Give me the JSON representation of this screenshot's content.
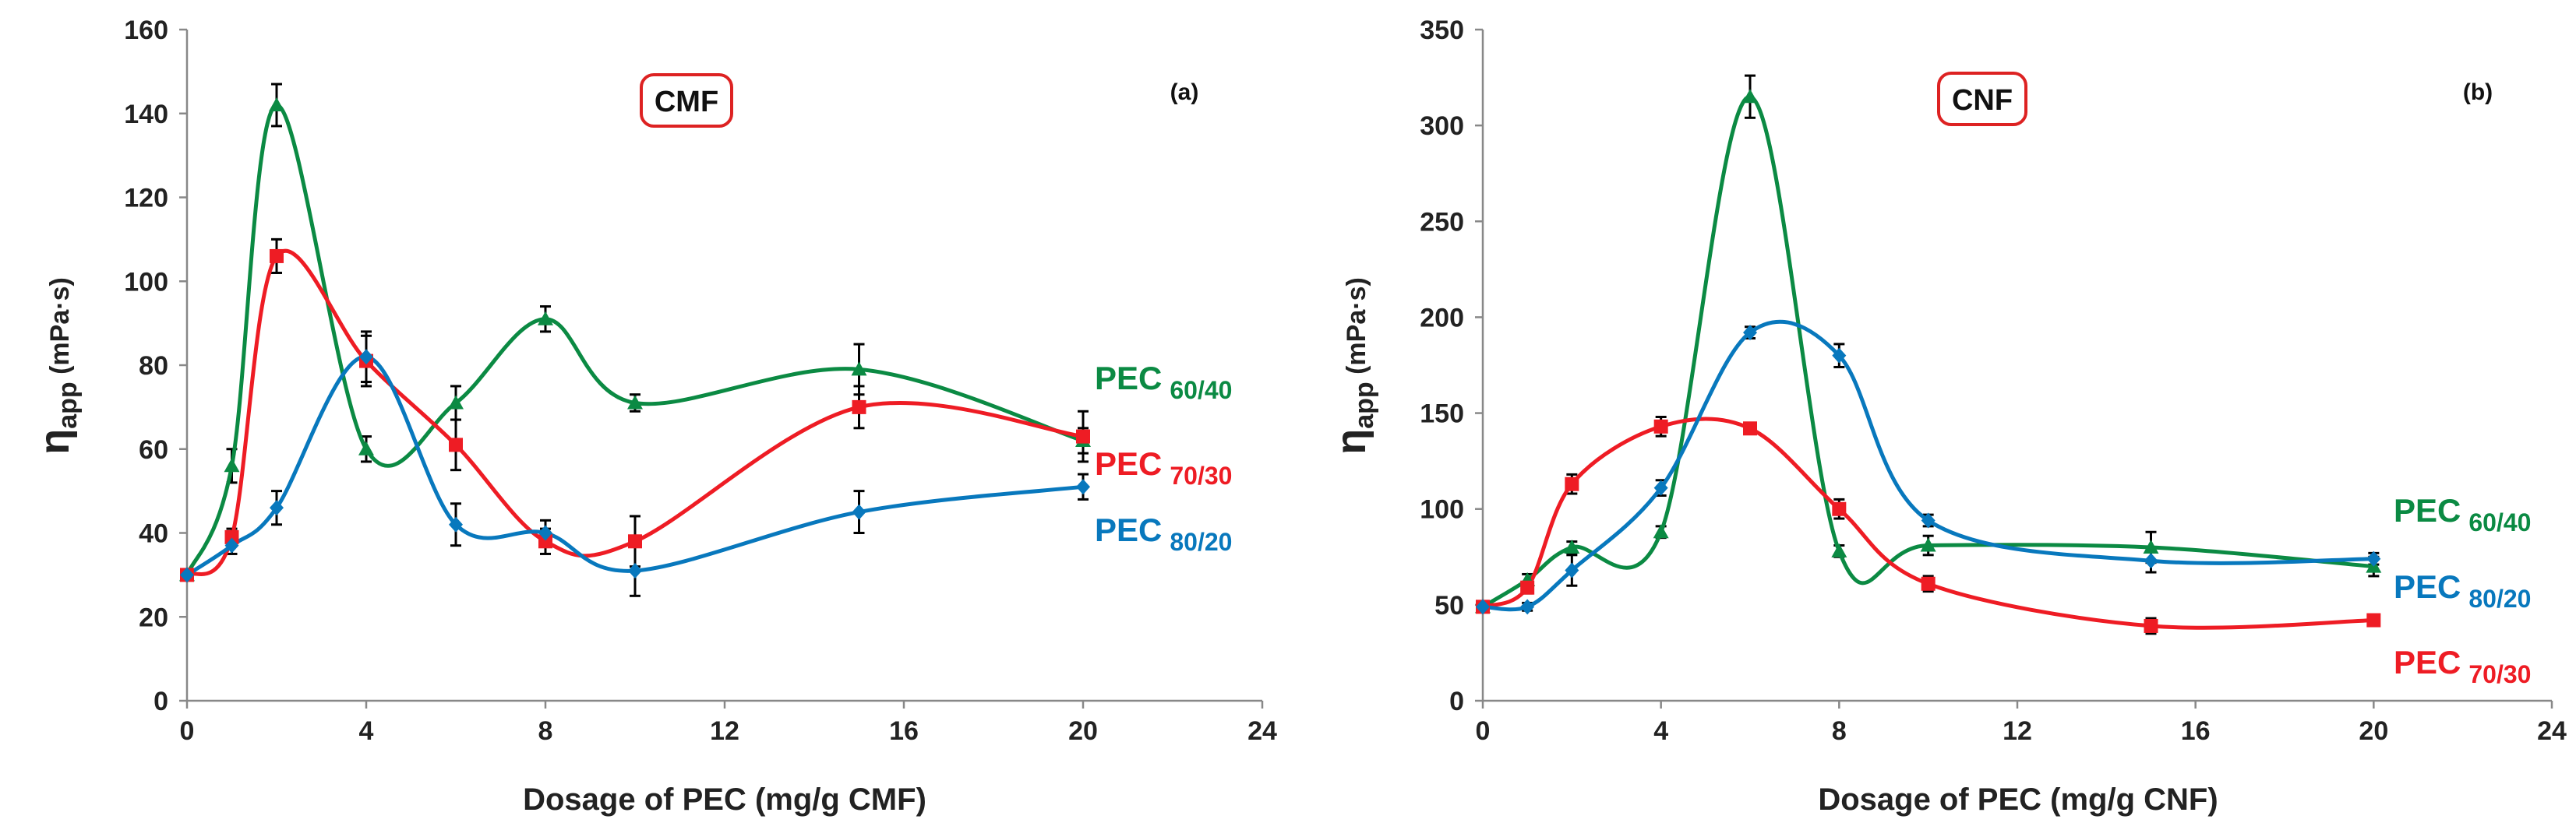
{
  "chart_data": [
    {
      "type": "line",
      "panel_label": "(a)",
      "box_label": "CMF",
      "ylabel_main": "η",
      "ylabel_sub": "app",
      "ylabel_unit": " (mPa·s)",
      "xlabel": "Dosage of PEC (mg/g CMF)",
      "xlim": [
        0,
        24
      ],
      "ylim": [
        0,
        160
      ],
      "xticks": [
        0,
        4,
        8,
        12,
        16,
        20,
        24
      ],
      "yticks": [
        0,
        20,
        40,
        60,
        80,
        100,
        120,
        140,
        160
      ],
      "series": [
        {
          "name": "PEC",
          "ratio": "60/40",
          "color": "#0b8a43",
          "x": [
            0,
            1,
            2,
            4,
            6,
            8,
            10,
            15,
            20
          ],
          "y": [
            30,
            56,
            142,
            60,
            71,
            91,
            71,
            79,
            62
          ],
          "err": [
            1,
            4,
            5,
            3,
            4,
            3,
            2,
            6,
            3
          ]
        },
        {
          "name": "PEC",
          "ratio": "70/30",
          "color": "#ee1c24",
          "x": [
            0,
            1,
            2,
            4,
            6,
            8,
            10,
            15,
            20
          ],
          "y": [
            30,
            39,
            106,
            81,
            61,
            38,
            38,
            70,
            63
          ],
          "err": [
            1,
            2,
            4,
            6,
            6,
            3,
            6,
            5,
            6
          ]
        },
        {
          "name": "PEC",
          "ratio": "80/20",
          "color": "#0878bd",
          "x": [
            0,
            1,
            2,
            4,
            6,
            8,
            10,
            15,
            20
          ],
          "y": [
            30,
            37,
            46,
            82,
            42,
            40,
            31,
            45,
            51
          ],
          "err": [
            1,
            2,
            4,
            6,
            5,
            3,
            6,
            5,
            3
          ]
        }
      ]
    },
    {
      "type": "line",
      "panel_label": "(b)",
      "box_label": "CNF",
      "ylabel_main": "η",
      "ylabel_sub": "app",
      "ylabel_unit": " (mPa·s)",
      "xlabel": "Dosage of PEC (mg/g CNF)",
      "xlim": [
        0,
        24
      ],
      "ylim": [
        0,
        350
      ],
      "xticks": [
        0,
        4,
        8,
        12,
        16,
        20,
        24
      ],
      "yticks": [
        0,
        50,
        100,
        150,
        200,
        250,
        300,
        350
      ],
      "series": [
        {
          "name": "PEC",
          "ratio": "60/40",
          "color": "#0b8a43",
          "x": [
            0,
            1,
            2,
            4,
            6,
            8,
            10,
            15,
            20
          ],
          "y": [
            49,
            63,
            80,
            88,
            315,
            78,
            81,
            80,
            70
          ],
          "err": [
            2,
            3,
            3,
            3,
            11,
            3,
            5,
            8,
            5
          ]
        },
        {
          "name": "PEC",
          "ratio": "70/30",
          "color": "#ee1c24",
          "x": [
            0,
            1,
            2,
            4,
            6,
            8,
            10,
            15,
            20
          ],
          "y": [
            49,
            59,
            113,
            143,
            142,
            100,
            61,
            39,
            42
          ],
          "err": [
            2,
            3,
            5,
            5,
            2,
            5,
            4,
            4,
            2
          ]
        },
        {
          "name": "PEC",
          "ratio": "80/20",
          "color": "#0878bd",
          "x": [
            0,
            1,
            2,
            4,
            6,
            8,
            10,
            15,
            20
          ],
          "y": [
            49,
            49,
            68,
            111,
            192,
            180,
            94,
            73,
            74
          ],
          "err": [
            2,
            2,
            8,
            4,
            3,
            6,
            3,
            6,
            3
          ]
        }
      ]
    }
  ]
}
